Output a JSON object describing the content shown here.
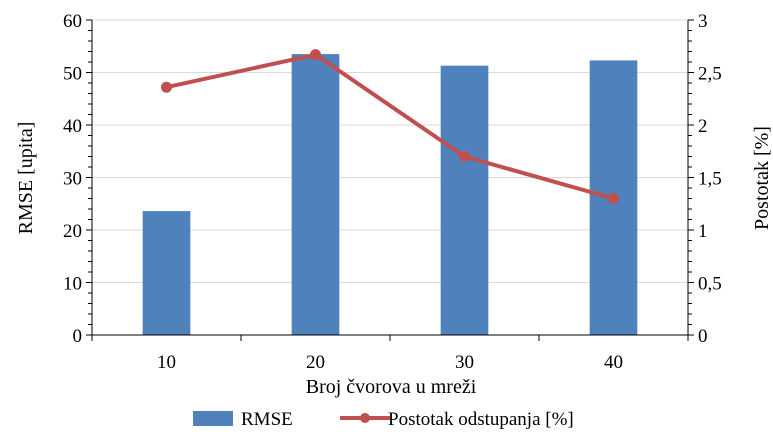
{
  "chart_data": {
    "type": "bar+line",
    "categories": [
      "10",
      "20",
      "30",
      "40"
    ],
    "series": [
      {
        "name": "RMSE",
        "type": "bar",
        "axis": "left",
        "color": "#4F81BD",
        "values": [
          23.6,
          53.5,
          51.3,
          52.3
        ]
      },
      {
        "name": "Postotak odstupanja [%]",
        "type": "line",
        "axis": "right",
        "color": "#C0504D",
        "values": [
          2.36,
          2.67,
          1.7,
          1.3
        ]
      }
    ],
    "xlabel": "Broj čvorova u mreži",
    "ylabel": "RMSE [upita]",
    "y2label": "Postotak [%]",
    "ylim": [
      0,
      60
    ],
    "y2lim": [
      0,
      3
    ],
    "yticks": [
      "0",
      "10",
      "20",
      "30",
      "40",
      "50",
      "60"
    ],
    "y2ticks": [
      "0",
      "0,5",
      "1",
      "1,5",
      "2",
      "2,5",
      "3"
    ],
    "grid": true,
    "legend_position": "bottom"
  }
}
